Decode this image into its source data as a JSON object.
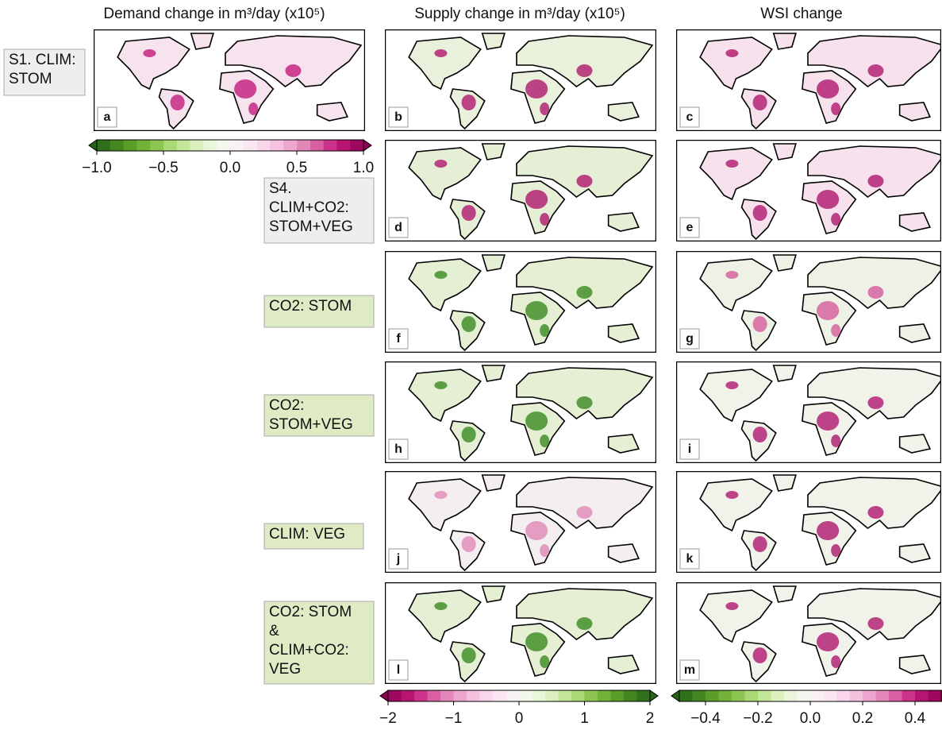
{
  "columns": [
    {
      "title": "Demand change in m³/day (x10⁵)"
    },
    {
      "title": "Supply change in m³/day (x10⁵)"
    },
    {
      "title": "WSI change"
    }
  ],
  "rows": [
    {
      "label": [
        "S1. CLIM:",
        "STOM"
      ]
    },
    {
      "label": [
        "S4.",
        "CLIM+CO2:",
        "STOM+VEG"
      ]
    },
    {
      "label": [
        "CO2: STOM"
      ]
    },
    {
      "label": [
        "CO2:",
        "STOM+VEG"
      ]
    },
    {
      "label": [
        "CLIM: VEG"
      ]
    },
    {
      "label": [
        "CO2: STOM",
        "&",
        "CLIM+CO2:",
        "VEG"
      ]
    }
  ],
  "panels": [
    "a",
    "b",
    "c",
    "d",
    "e",
    "f",
    "g",
    "h",
    "i",
    "j",
    "k",
    "l",
    "m"
  ],
  "colorbars": [
    {
      "lim": [
        -1,
        1
      ],
      "ticks": [
        {
          "value": -1,
          "label": "−1.0"
        },
        {
          "value": -0.5,
          "label": "−0.5"
        },
        {
          "value": 0,
          "label": "0.0"
        },
        {
          "value": 0.5,
          "label": "0.5"
        },
        {
          "value": 1,
          "label": "1.0"
        }
      ]
    },
    {
      "lim": [
        -2,
        2
      ],
      "ticks": [
        {
          "value": -2,
          "label": "−2"
        },
        {
          "value": -1,
          "label": "−1"
        },
        0,
        1,
        2
      ]
    },
    {
      "lim": [
        -0.5,
        0.5
      ],
      "ticks": [
        {
          "value": -0.4,
          "label": "−0.4"
        },
        {
          "value": -0.2,
          "label": "−0.2"
        },
        {
          "value": 0,
          "label": "0.0"
        },
        0.2,
        0.4
      ]
    }
  ]
}
